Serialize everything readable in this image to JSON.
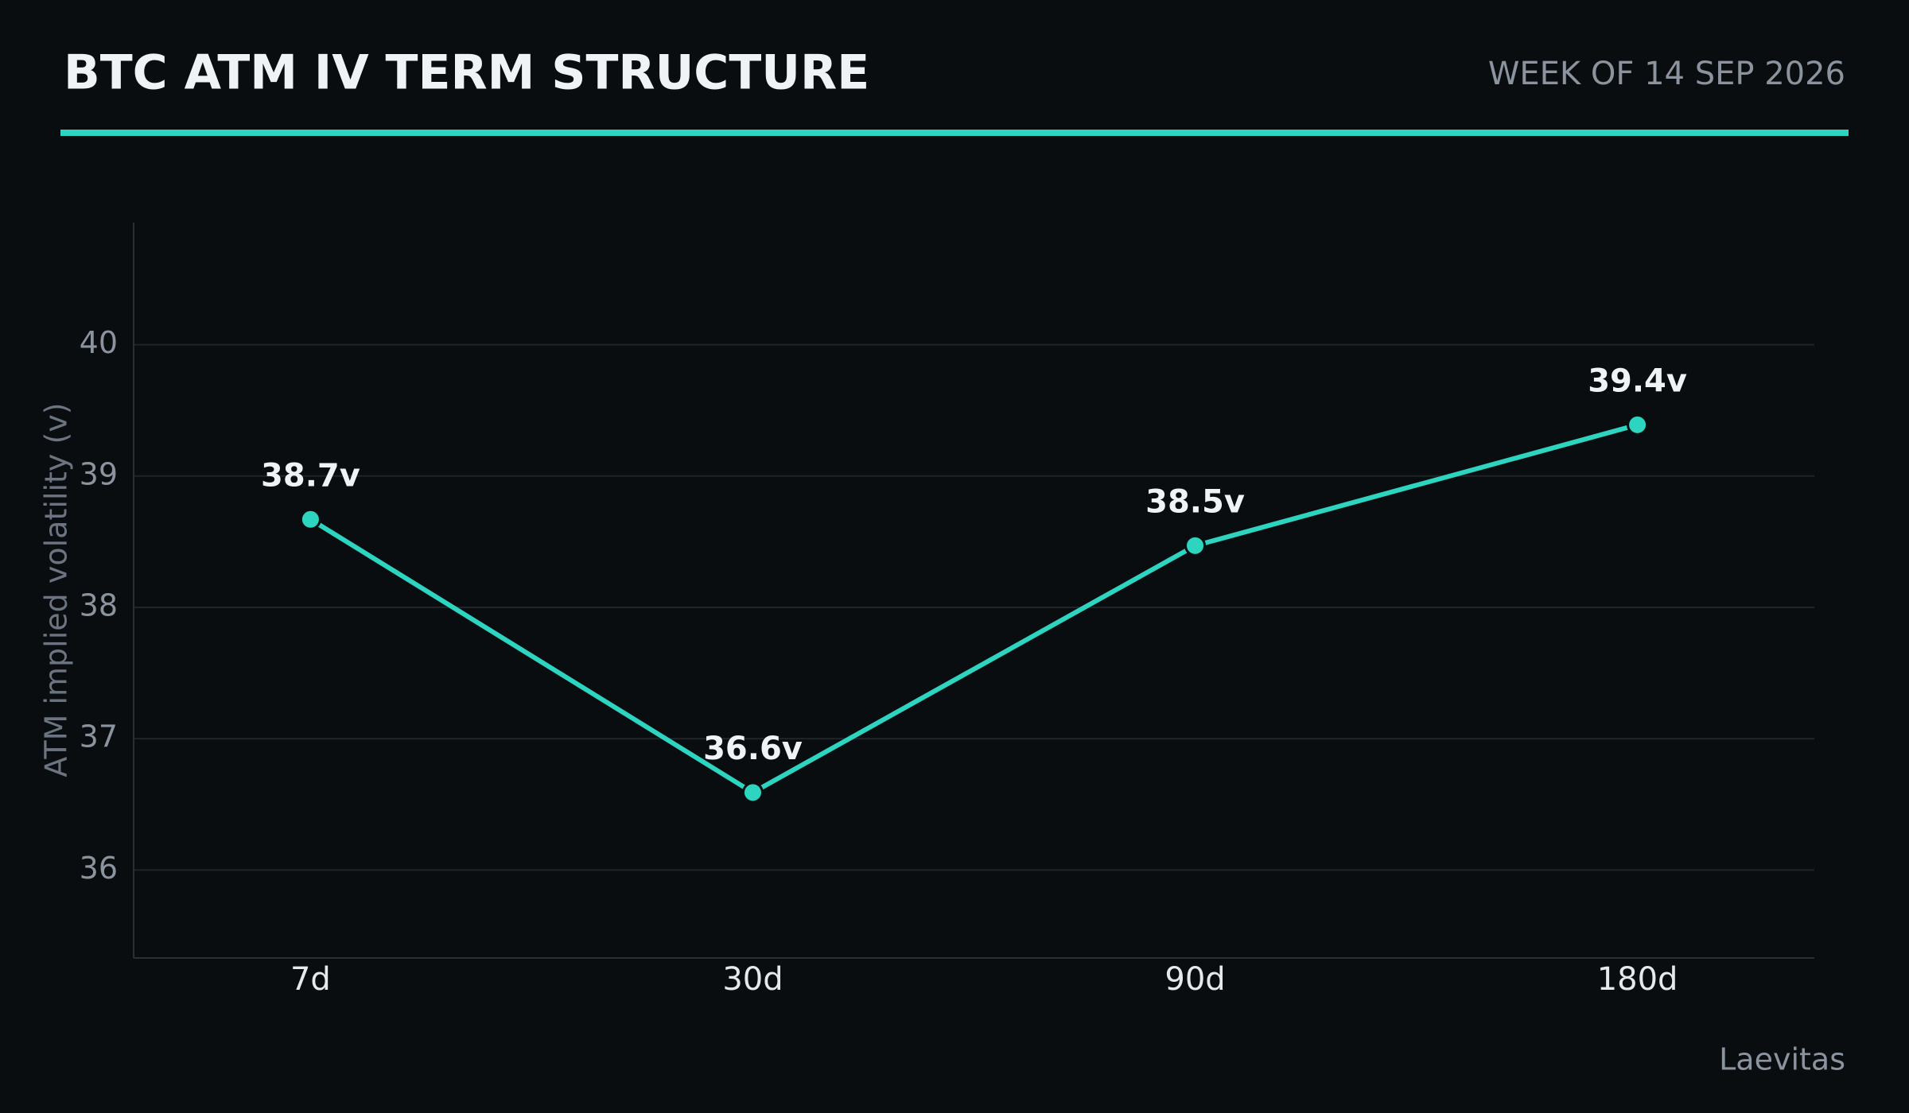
{
  "chart_data": {
    "type": "line",
    "title": "BTC ATM IV TERM STRUCTURE",
    "subtitle": "WEEK OF 14 SEP 2026",
    "source": "Laevitas",
    "y_label": "ATM implied volatility (v)",
    "categories": [
      "7d",
      "30d",
      "90d",
      "180d"
    ],
    "values": [
      38.67,
      36.59,
      38.47,
      39.39
    ],
    "value_labels": [
      "38.7v",
      "36.6v",
      "38.5v",
      "39.4v"
    ],
    "color": "#2dd4bf",
    "ylim": [
      35.33,
      40.93
    ],
    "yticks": [
      36,
      37,
      38,
      39,
      40
    ],
    "grid": true
  }
}
